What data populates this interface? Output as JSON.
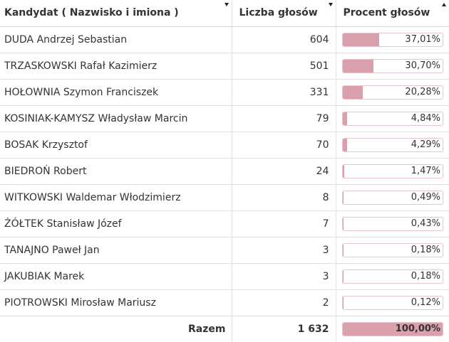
{
  "table": {
    "headers": {
      "name": "Kandydat ( Nazwisko i imiona )",
      "votes": "Liczba głosów",
      "percent": "Procent głosów"
    },
    "rows": [
      {
        "name": "DUDA Andrzej Sebastian",
        "votes": "604",
        "percent": "37,01%",
        "fraction": 0.3701
      },
      {
        "name": "TRZASKOWSKI Rafał Kazimierz",
        "votes": "501",
        "percent": "30,70%",
        "fraction": 0.307
      },
      {
        "name": "HOŁOWNIA Szymon Franciszek",
        "votes": "331",
        "percent": "20,28%",
        "fraction": 0.2028
      },
      {
        "name": "KOSINIAK-KAMYSZ Władysław Marcin",
        "votes": "79",
        "percent": "4,84%",
        "fraction": 0.0484
      },
      {
        "name": "BOSAK Krzysztof",
        "votes": "70",
        "percent": "4,29%",
        "fraction": 0.0429
      },
      {
        "name": "BIEDROŃ Robert",
        "votes": "24",
        "percent": "1,47%",
        "fraction": 0.0147
      },
      {
        "name": "WITKOWSKI Waldemar Włodzimierz",
        "votes": "8",
        "percent": "0,49%",
        "fraction": 0.0049
      },
      {
        "name": "ŻÓŁTEK Stanisław Józef",
        "votes": "7",
        "percent": "0,43%",
        "fraction": 0.0043
      },
      {
        "name": "TANAJNO Paweł Jan",
        "votes": "3",
        "percent": "0,18%",
        "fraction": 0.0018
      },
      {
        "name": "JAKUBIAK Marek",
        "votes": "3",
        "percent": "0,18%",
        "fraction": 0.0018
      },
      {
        "name": "PIOTROWSKI Mirosław Mariusz",
        "votes": "2",
        "percent": "0,12%",
        "fraction": 0.0012
      }
    ],
    "total": {
      "label": "Razem",
      "votes": "1 632",
      "percent": "100,00%",
      "fraction": 1.0
    }
  },
  "colors": {
    "bar_fill": "#dba0ad",
    "bar_border": "#e8c5cc"
  },
  "icons": {
    "sort_name": "sort-desc-icon",
    "sort_votes": "sort-desc-icon",
    "sort_percent": "sort-asc-icon"
  }
}
